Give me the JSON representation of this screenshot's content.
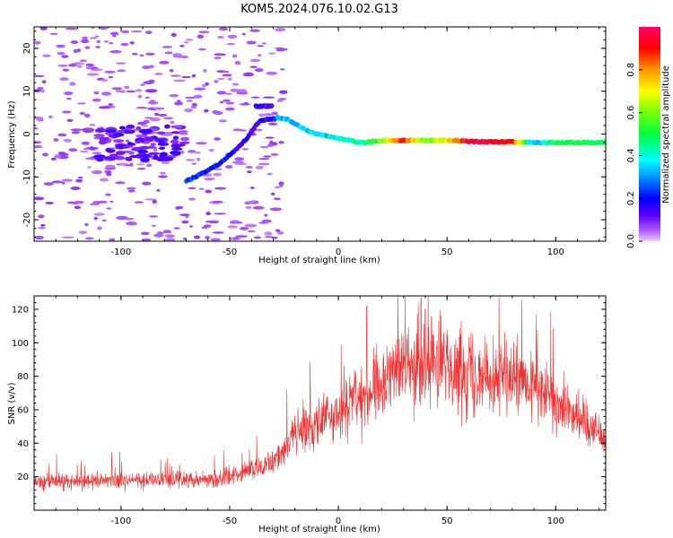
{
  "title": "KOM5.2024.076.10.02.G13",
  "chart_data": [
    {
      "type": "heatmap",
      "xlabel": "Height of straight line (km)",
      "ylabel": "Frequency (Hz)",
      "xlim": [
        -140,
        123
      ],
      "ylim": [
        -25,
        25
      ],
      "xticks": [
        -100,
        -50,
        0,
        50,
        100
      ],
      "yticks": [
        -20,
        -10,
        0,
        10,
        20
      ],
      "colorbar": {
        "label": "Normalized spectral amplitude",
        "ticks": [
          0.0,
          0.2,
          0.4,
          0.6,
          0.8
        ],
        "range": [
          0,
          1
        ],
        "colormap": "gist_rainbow_r"
      },
      "ridge": {
        "x": [
          -70,
          -62,
          -55,
          -48,
          -42,
          -38,
          -36,
          -33,
          -30,
          -28,
          -24,
          -20,
          -15,
          -10,
          -5,
          0,
          5,
          10,
          15,
          20,
          30,
          40,
          50,
          60,
          70,
          80,
          90,
          100,
          110,
          123
        ],
        "freq": [
          -11,
          -9,
          -7,
          -4,
          -1,
          2,
          3,
          3.5,
          3.5,
          3.8,
          3.5,
          2.5,
          1,
          0,
          -0.5,
          -1,
          -1.5,
          -2,
          -1.8,
          -1.5,
          -1.5,
          -1.5,
          -1.5,
          -1.7,
          -1.8,
          -1.8,
          -2,
          -2,
          -2,
          -2
        ],
        "amplitude": [
          0.25,
          0.2,
          0.22,
          0.15,
          0.15,
          0.15,
          0.15,
          0.15,
          0.2,
          0.3,
          0.35,
          0.35,
          0.35,
          0.4,
          0.35,
          0.4,
          0.4,
          0.45,
          0.5,
          0.6,
          0.9,
          0.6,
          0.7,
          0.95,
          0.95,
          0.9,
          0.3,
          0.5,
          0.5,
          0.5
        ]
      },
      "secondary_ridge": {
        "x": [
          -38,
          -34,
          -30
        ],
        "freq": [
          6.5,
          6.5,
          6.5
        ],
        "amplitude": [
          0.15,
          0.15,
          0.15
        ]
      }
    },
    {
      "type": "line",
      "xlabel": "Height of straight line (km)",
      "ylabel": "SNR (v/v)",
      "xlim": [
        -140,
        123
      ],
      "ylim": [
        0,
        128
      ],
      "xticks": [
        -100,
        -50,
        0,
        50,
        100
      ],
      "yticks": [
        20,
        40,
        60,
        80,
        100,
        120
      ],
      "color": "#f03232",
      "series": [
        {
          "x": [
            -140,
            -120,
            -100,
            -80,
            -60,
            -50,
            -40,
            -30,
            -25,
            -20,
            -10,
            0,
            10,
            20,
            25,
            30,
            35,
            40,
            45,
            50,
            60,
            70,
            80,
            90,
            100,
            110,
            115,
            123
          ],
          "values": [
            17,
            17,
            18,
            18,
            19,
            20,
            24,
            28,
            38,
            45,
            52,
            58,
            66,
            75,
            82,
            86,
            88,
            88,
            88,
            86,
            84,
            81,
            78,
            72,
            66,
            58,
            52,
            42
          ]
        }
      ],
      "peaks": {
        "x": [
          13,
          38,
          40
        ],
        "values": [
          122,
          127,
          120
        ]
      }
    }
  ]
}
